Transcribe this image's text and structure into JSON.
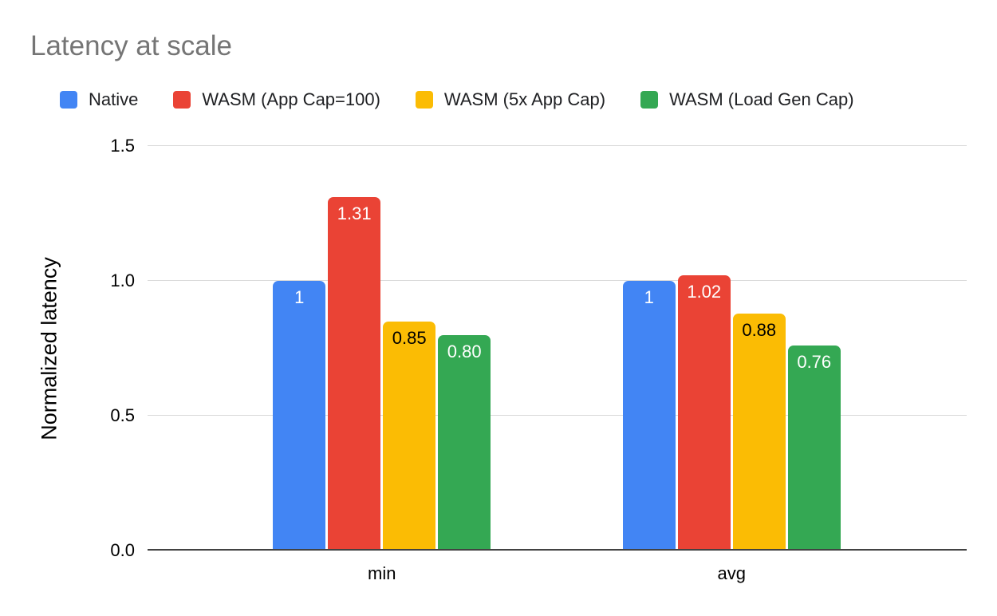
{
  "title": "Latency at scale",
  "legend": [
    {
      "label": "Native",
      "color": "#4285F4"
    },
    {
      "label": "WASM (App Cap=100)",
      "color": "#EA4335"
    },
    {
      "label": "WASM (5x App Cap)",
      "color": "#FBBC04"
    },
    {
      "label": "WASM (Load Gen Cap)",
      "color": "#34A853"
    }
  ],
  "chart_data": {
    "type": "bar",
    "title": "Latency at scale",
    "categories": [
      "min",
      "avg"
    ],
    "series": [
      {
        "name": "Native",
        "color": "#4285F4",
        "values": [
          1,
          1
        ],
        "labels": [
          "1",
          "1"
        ],
        "label_color": "#ffffff"
      },
      {
        "name": "WASM (App Cap=100)",
        "color": "#EA4335",
        "values": [
          1.31,
          1.02
        ],
        "labels": [
          "1.31",
          "1.02"
        ],
        "label_color": "#ffffff"
      },
      {
        "name": "WASM (5x App Cap)",
        "color": "#FBBC04",
        "values": [
          0.85,
          0.88
        ],
        "labels": [
          "0.85",
          "0.88"
        ],
        "label_color": "#000000"
      },
      {
        "name": "WASM (Load Gen Cap)",
        "color": "#34A853",
        "values": [
          0.8,
          0.76
        ],
        "labels": [
          "0.80",
          "0.76"
        ],
        "label_color": "#ffffff"
      }
    ],
    "xlabel": "",
    "ylabel": "Normalized latency",
    "ylim": [
      0,
      1.5
    ],
    "yticks": [
      "0.0",
      "0.5",
      "1.0",
      "1.5"
    ],
    "grid": true,
    "legend_position": "top"
  }
}
